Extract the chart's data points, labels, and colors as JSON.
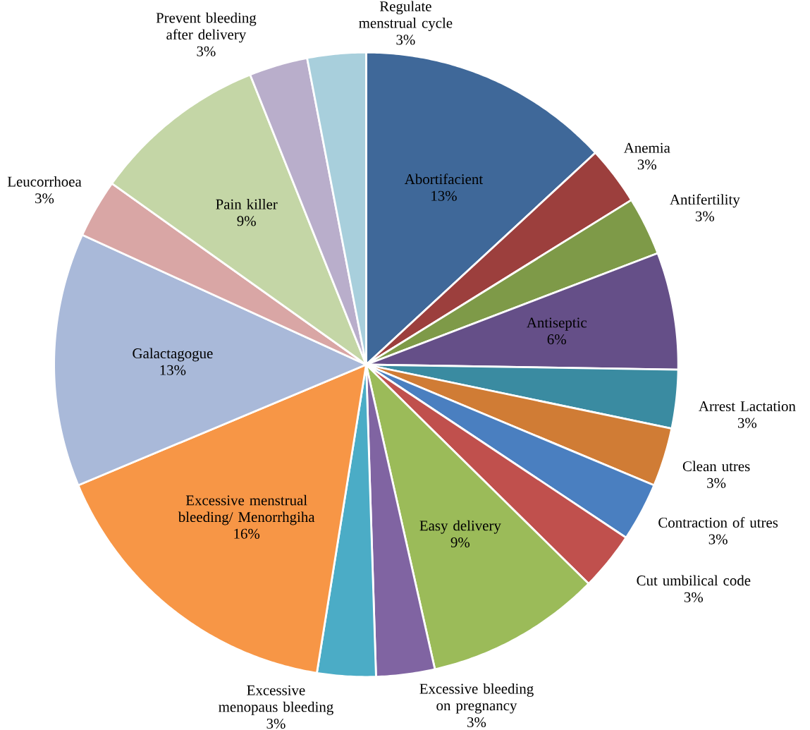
{
  "chart_data": {
    "type": "pie",
    "categories": [
      "Abortifacient",
      "Anemia",
      "Antifertility",
      "Antiseptic",
      "Arrest Lactation",
      "Clean utres",
      "Contraction of utres",
      "Cut umbilical code",
      "Easy delivery",
      "Excessive bleeding on pregnancy",
      "Excessive menopaus bleeding",
      "Excessive menstrual bleeding/ Menorrhgiha",
      "Galactagogue",
      "Leucorrhoea",
      "Pain killer",
      "Prevent bleeding after delivery",
      "Regulate menstrual cycle"
    ],
    "values": [
      13,
      3,
      3,
      6,
      3,
      3,
      3,
      3,
      9,
      3,
      3,
      16,
      13,
      3,
      9,
      3,
      3
    ],
    "value_labels": [
      "13%",
      "3%",
      "3%",
      "6%",
      "3%",
      "3%",
      "3%",
      "3%",
      "9%",
      "3%",
      "3%",
      "16%",
      "13%",
      "3%",
      "9%",
      "3%",
      "3%"
    ],
    "colors": [
      "#3f6899",
      "#9c3f3d",
      "#7e9a48",
      "#654f88",
      "#3a8ba1",
      "#d07c35",
      "#4a7fc0",
      "#c0504d",
      "#9bbb59",
      "#8064a2",
      "#4bacc6",
      "#f79646",
      "#a9b9d9",
      "#d9a6a5",
      "#c4d6a6",
      "#b9aecb",
      "#a8cfdc"
    ]
  }
}
